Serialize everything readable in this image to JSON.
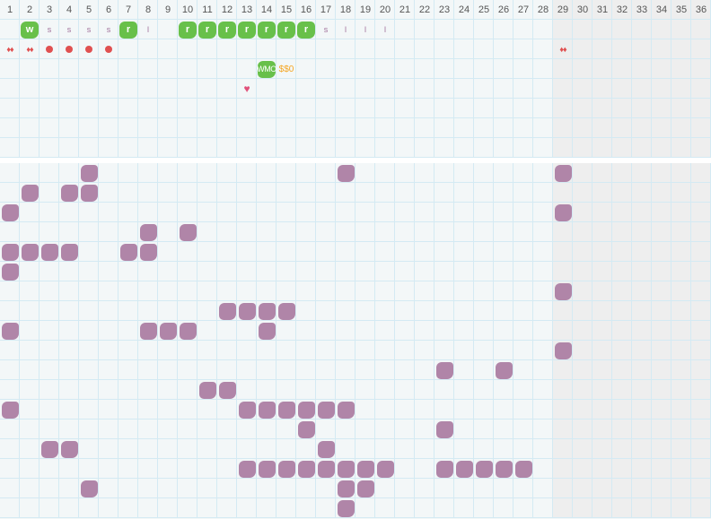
{
  "columns": [
    "1",
    "2",
    "3",
    "4",
    "5",
    "6",
    "7",
    "8",
    "9",
    "10",
    "11",
    "12",
    "13",
    "14",
    "15",
    "16",
    "17",
    "18",
    "19",
    "20",
    "21",
    "22",
    "23",
    "24",
    "25",
    "26",
    "27",
    "28",
    "29",
    "30",
    "31",
    "32",
    "33",
    "34",
    "35",
    "36"
  ],
  "shaded_from_column": 29,
  "colors": {
    "blob": "#b085a8",
    "green": "#68c04a",
    "red": "#e05050",
    "gold": "#f5a623"
  },
  "top_rows": [
    [
      {
        "col": 2,
        "type": "green",
        "text": "w"
      },
      {
        "col": 3,
        "type": "text",
        "text": "s"
      },
      {
        "col": 4,
        "type": "text",
        "text": "s"
      },
      {
        "col": 5,
        "type": "text",
        "text": "s"
      },
      {
        "col": 6,
        "type": "text",
        "text": "s"
      },
      {
        "col": 7,
        "type": "green",
        "text": "r"
      },
      {
        "col": 8,
        "type": "text",
        "text": "l"
      },
      {
        "col": 10,
        "type": "green",
        "text": "r"
      },
      {
        "col": 11,
        "type": "green",
        "text": "r"
      },
      {
        "col": 12,
        "type": "green",
        "text": "r"
      },
      {
        "col": 13,
        "type": "green",
        "text": "r"
      },
      {
        "col": 14,
        "type": "green",
        "text": "r"
      },
      {
        "col": 15,
        "type": "green",
        "text": "r"
      },
      {
        "col": 16,
        "type": "green",
        "text": "r"
      },
      {
        "col": 17,
        "type": "text",
        "text": "s"
      },
      {
        "col": 18,
        "type": "text",
        "text": "l"
      },
      {
        "col": 19,
        "type": "text",
        "text": "l"
      },
      {
        "col": 20,
        "type": "text",
        "text": "l"
      }
    ],
    [
      {
        "col": 1,
        "type": "drops",
        "icon": "drops-icon"
      },
      {
        "col": 2,
        "type": "drops",
        "icon": "drops-icon"
      },
      {
        "col": 3,
        "type": "dot",
        "icon": "dot-icon"
      },
      {
        "col": 4,
        "type": "dot",
        "icon": "dot-icon"
      },
      {
        "col": 5,
        "type": "dot",
        "icon": "dot-icon"
      },
      {
        "col": 6,
        "type": "dot",
        "icon": "dot-icon"
      },
      {
        "col": 29,
        "type": "drops",
        "icon": "drops-icon"
      }
    ],
    [
      {
        "col": 14,
        "type": "green",
        "text": "WMO"
      },
      {
        "col": 15,
        "type": "gold",
        "text": "$$0"
      }
    ],
    [
      {
        "col": 13,
        "type": "heart",
        "icon": "heart-icon"
      }
    ],
    [],
    [],
    []
  ],
  "lower_rows": [
    [
      5,
      18,
      29
    ],
    [
      2,
      4,
      5
    ],
    [
      1,
      29
    ],
    [
      8,
      10
    ],
    [
      1,
      2,
      3,
      4,
      7,
      8
    ],
    [
      1
    ],
    [
      29
    ],
    [
      12,
      13,
      14,
      15
    ],
    [
      1,
      8,
      9,
      10,
      14
    ],
    [
      29
    ],
    [
      23,
      26
    ],
    [
      11,
      12
    ],
    [
      1,
      13,
      14,
      15,
      16,
      17,
      18
    ],
    [
      16,
      23
    ],
    [
      3,
      4,
      17
    ],
    [
      13,
      14,
      15,
      16,
      17,
      18,
      19,
      20,
      23,
      24,
      25,
      26,
      27
    ],
    [
      5,
      18,
      19
    ],
    [
      18
    ]
  ]
}
